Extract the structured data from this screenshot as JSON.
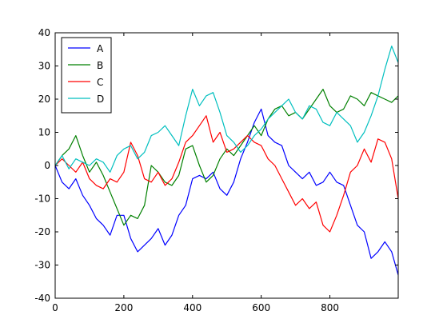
{
  "chart_data": {
    "type": "line",
    "title": "",
    "xlabel": "",
    "ylabel": "",
    "xlim": [
      0,
      999
    ],
    "ylim": [
      -40,
      40
    ],
    "x_ticks": [
      0,
      200,
      400,
      600,
      800
    ],
    "y_ticks": [
      -40,
      -30,
      -20,
      -10,
      0,
      10,
      20,
      30,
      40
    ],
    "grid": false,
    "legend_position": "top-left",
    "series": [
      {
        "name": "A",
        "color": "#0000ff",
        "x": [
          0,
          20,
          40,
          60,
          80,
          100,
          120,
          140,
          160,
          180,
          200,
          220,
          240,
          260,
          280,
          300,
          320,
          340,
          360,
          380,
          400,
          420,
          440,
          460,
          480,
          500,
          520,
          540,
          560,
          580,
          600,
          620,
          640,
          660,
          680,
          700,
          720,
          740,
          760,
          780,
          800,
          820,
          840,
          860,
          880,
          900,
          920,
          940,
          960,
          980,
          999
        ],
        "values": [
          0,
          -5,
          -7,
          -4,
          -9,
          -12,
          -16,
          -18,
          -21,
          -15,
          -15,
          -22,
          -26,
          -24,
          -22,
          -19,
          -24,
          -21,
          -15,
          -12,
          -4,
          -3,
          -4,
          -2,
          -7,
          -9,
          -5,
          2,
          7,
          13,
          17,
          9,
          7,
          6,
          0,
          -2,
          -4,
          -2,
          -6,
          -5,
          -2,
          -5,
          -6,
          -12,
          -18,
          -20,
          -28,
          -26,
          -23,
          -26,
          -33
        ]
      },
      {
        "name": "B",
        "color": "#008000",
        "x": [
          0,
          20,
          40,
          60,
          80,
          100,
          120,
          140,
          160,
          180,
          200,
          220,
          240,
          260,
          280,
          300,
          320,
          340,
          360,
          380,
          400,
          420,
          440,
          460,
          480,
          500,
          520,
          540,
          560,
          580,
          600,
          620,
          640,
          660,
          680,
          700,
          720,
          740,
          760,
          780,
          800,
          820,
          840,
          860,
          880,
          900,
          920,
          940,
          960,
          980,
          999
        ],
        "values": [
          0,
          3,
          5,
          9,
          3,
          -2,
          1,
          -3,
          -8,
          -13,
          -18,
          -15,
          -16,
          -12,
          0,
          -2,
          -5,
          -6,
          -3,
          5,
          6,
          0,
          -5,
          -3,
          2,
          5,
          3,
          6,
          9,
          12,
          9,
          14,
          17,
          18,
          15,
          16,
          14,
          17,
          20,
          23,
          18,
          16,
          17,
          21,
          20,
          18,
          22,
          21,
          20,
          19,
          21
        ]
      },
      {
        "name": "C",
        "color": "#ff0000",
        "x": [
          0,
          20,
          40,
          60,
          80,
          100,
          120,
          140,
          160,
          180,
          200,
          220,
          240,
          260,
          280,
          300,
          320,
          340,
          360,
          380,
          400,
          420,
          440,
          460,
          480,
          500,
          520,
          540,
          560,
          580,
          600,
          620,
          640,
          660,
          680,
          700,
          720,
          740,
          760,
          780,
          800,
          820,
          840,
          860,
          880,
          900,
          920,
          940,
          960,
          980,
          999
        ],
        "values": [
          0,
          2,
          0,
          -2,
          1,
          -4,
          -6,
          -7,
          -4,
          -5,
          -2,
          7,
          3,
          -4,
          -5,
          -2,
          -6,
          -4,
          1,
          7,
          9,
          12,
          15,
          7,
          10,
          4,
          5,
          7,
          9,
          7,
          6,
          2,
          0,
          -4,
          -8,
          -12,
          -10,
          -13,
          -11,
          -18,
          -20,
          -15,
          -9,
          -2,
          0,
          5,
          1,
          8,
          7,
          2,
          -10
        ]
      },
      {
        "name": "D",
        "color": "#00bfbf",
        "x": [
          0,
          20,
          40,
          60,
          80,
          100,
          120,
          140,
          160,
          180,
          200,
          220,
          240,
          260,
          280,
          300,
          320,
          340,
          360,
          380,
          400,
          420,
          440,
          460,
          480,
          500,
          520,
          540,
          560,
          580,
          600,
          620,
          640,
          660,
          680,
          700,
          720,
          740,
          760,
          780,
          800,
          820,
          840,
          860,
          880,
          900,
          920,
          940,
          960,
          980,
          999
        ],
        "values": [
          0,
          3,
          -1,
          2,
          1,
          0,
          2,
          1,
          -2,
          3,
          5,
          6,
          2,
          4,
          9,
          10,
          12,
          9,
          6,
          15,
          23,
          18,
          21,
          22,
          16,
          9,
          7,
          4,
          6,
          9,
          11,
          14,
          16,
          18,
          20,
          16,
          14,
          18,
          17,
          13,
          12,
          16,
          14,
          12,
          7,
          10,
          15,
          21,
          29,
          36,
          31
        ]
      }
    ]
  }
}
